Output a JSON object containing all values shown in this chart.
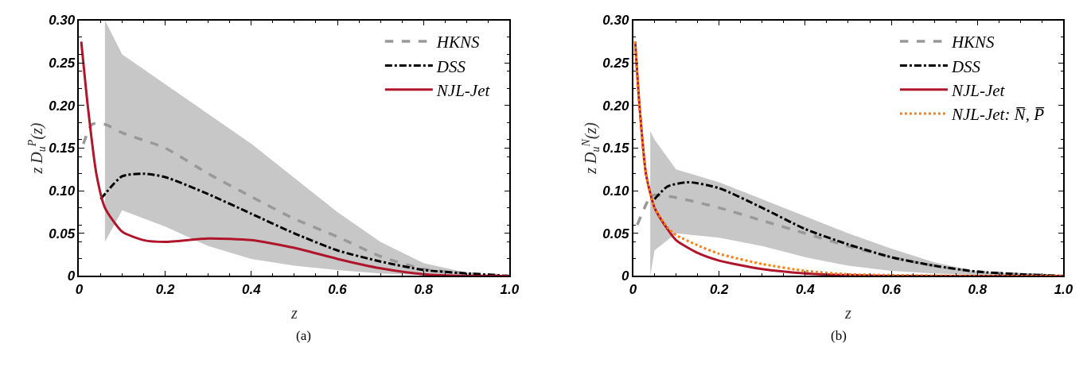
{
  "chart_data": [
    {
      "type": "line",
      "xlabel": "z",
      "ylabel": "z D$_{u}$$^{P}$(z)",
      "annotations": [
        "(a)"
      ],
      "xlim": [
        0,
        1
      ],
      "ylim": [
        0,
        0.3
      ],
      "xticks": [
        0,
        0.2,
        0.4,
        0.6,
        0.8,
        {
          "value": 1,
          "label": "1.0"
        }
      ],
      "yticks": [
        0,
        0.05,
        {
          "value": 0.1,
          "label": "0.10"
        },
        0.15,
        {
          "value": 0.2,
          "label": "0.20"
        },
        0.25,
        {
          "value": 0.3,
          "label": "0.30"
        }
      ],
      "legend": "top right",
      "series": [
        {
          "name": "HKNS",
          "color": "#999999",
          "line_style": "dashed",
          "x": [
            0.01,
            0.03,
            0.06,
            0.1,
            0.2,
            0.3,
            0.4,
            0.5,
            0.6,
            0.7,
            0.8,
            0.9,
            1.0
          ],
          "values": [
            0.155,
            0.178,
            0.178,
            0.168,
            0.15,
            0.12,
            0.093,
            0.067,
            0.046,
            0.023,
            0.008,
            0.003,
            0
          ],
          "upper": [
            null,
            null,
            0.3,
            0.26,
            0.225,
            0.19,
            0.155,
            0.115,
            0.075,
            0.04,
            0.015,
            0.004,
            0
          ],
          "lower": [
            null,
            null,
            0.04,
            0.077,
            0.058,
            0.035,
            0.02,
            0.012,
            0.007,
            0.003,
            0.001,
            0.0005,
            0
          ]
        },
        {
          "name": "DSS",
          "color": "#000000",
          "line_style": "dashdot",
          "x": [
            0.05,
            0.1,
            0.15,
            0.2,
            0.3,
            0.4,
            0.5,
            0.6,
            0.7,
            0.8,
            0.9,
            1.0
          ],
          "values": [
            0.09,
            0.117,
            0.12,
            0.116,
            0.096,
            0.073,
            0.05,
            0.03,
            0.017,
            0.007,
            0.003,
            0
          ]
        },
        {
          "name": "NJL-Jet",
          "color": "#b0162b",
          "line_style": "solid",
          "x": [
            0.005,
            0.02,
            0.04,
            0.06,
            0.1,
            0.15,
            0.2,
            0.3,
            0.4,
            0.5,
            0.6,
            0.7,
            0.8,
            0.9,
            1.0
          ],
          "values": [
            0.275,
            0.2,
            0.12,
            0.08,
            0.052,
            0.042,
            0.04,
            0.044,
            0.042,
            0.033,
            0.02,
            0.009,
            0.002,
            0,
            0
          ]
        }
      ]
    },
    {
      "type": "line",
      "xlabel": "z",
      "ylabel": "z D$_{u}$$^{N}$(z)",
      "annotations": [
        "(b)"
      ],
      "xlim": [
        0,
        1
      ],
      "ylim": [
        0,
        0.3
      ],
      "xticks": [
        0,
        0.2,
        0.4,
        0.6,
        0.8,
        {
          "value": 1,
          "label": "1.0"
        }
      ],
      "yticks": [
        0,
        0.05,
        {
          "value": 0.1,
          "label": "0.10"
        },
        0.15,
        {
          "value": 0.2,
          "label": "0.20"
        },
        0.25,
        {
          "value": 0.3,
          "label": "0.30"
        }
      ],
      "legend": "top right",
      "series": [
        {
          "name": "HKNS",
          "color": "#999999",
          "line_style": "dashed",
          "x": [
            0.01,
            0.04,
            0.05,
            0.1,
            0.2,
            0.3,
            0.4,
            0.5,
            0.6,
            0.7,
            0.8,
            0.9,
            1.0
          ],
          "values": [
            0.06,
            0.093,
            0.095,
            0.092,
            0.08,
            0.065,
            0.05,
            0.035,
            0.022,
            0.012,
            0.005,
            0.002,
            0
          ],
          "upper": [
            null,
            0.17,
            0.16,
            0.125,
            0.11,
            0.09,
            0.07,
            0.05,
            0.032,
            0.016,
            0.005,
            0.002,
            0
          ],
          "lower": [
            null,
            0,
            0.03,
            0.05,
            0.045,
            0.035,
            0.022,
            0.012,
            0.006,
            0.003,
            0.001,
            0,
            0
          ]
        },
        {
          "name": "DSS",
          "color": "#000000",
          "line_style": "dashdot",
          "x": [
            0.05,
            0.08,
            0.13,
            0.2,
            0.3,
            0.4,
            0.5,
            0.6,
            0.7,
            0.8,
            0.9,
            1.0
          ],
          "values": [
            0.09,
            0.105,
            0.11,
            0.103,
            0.08,
            0.055,
            0.037,
            0.022,
            0.012,
            0.005,
            0.002,
            0
          ]
        },
        {
          "name": "NJL-Jet",
          "color": "#b0162b",
          "line_style": "solid",
          "x": [
            0.005,
            0.015,
            0.03,
            0.05,
            0.08,
            0.1,
            0.15,
            0.2,
            0.3,
            0.4,
            0.5,
            0.6,
            1.0
          ],
          "values": [
            0.275,
            0.2,
            0.12,
            0.08,
            0.055,
            0.042,
            0.027,
            0.018,
            0.008,
            0.003,
            0.001,
            0,
            0
          ]
        },
        {
          "name": "NJL-Jet: N̅, P̅",
          "color": "#ff7f0e",
          "line_style": "dotted",
          "x": [
            0.005,
            0.015,
            0.03,
            0.05,
            0.08,
            0.1,
            0.15,
            0.2,
            0.3,
            0.4,
            0.5,
            0.6,
            0.8,
            1.0
          ],
          "values": [
            0.275,
            0.2,
            0.12,
            0.08,
            0.057,
            0.048,
            0.036,
            0.026,
            0.014,
            0.006,
            0.002,
            0.001,
            0,
            0
          ]
        }
      ]
    }
  ]
}
